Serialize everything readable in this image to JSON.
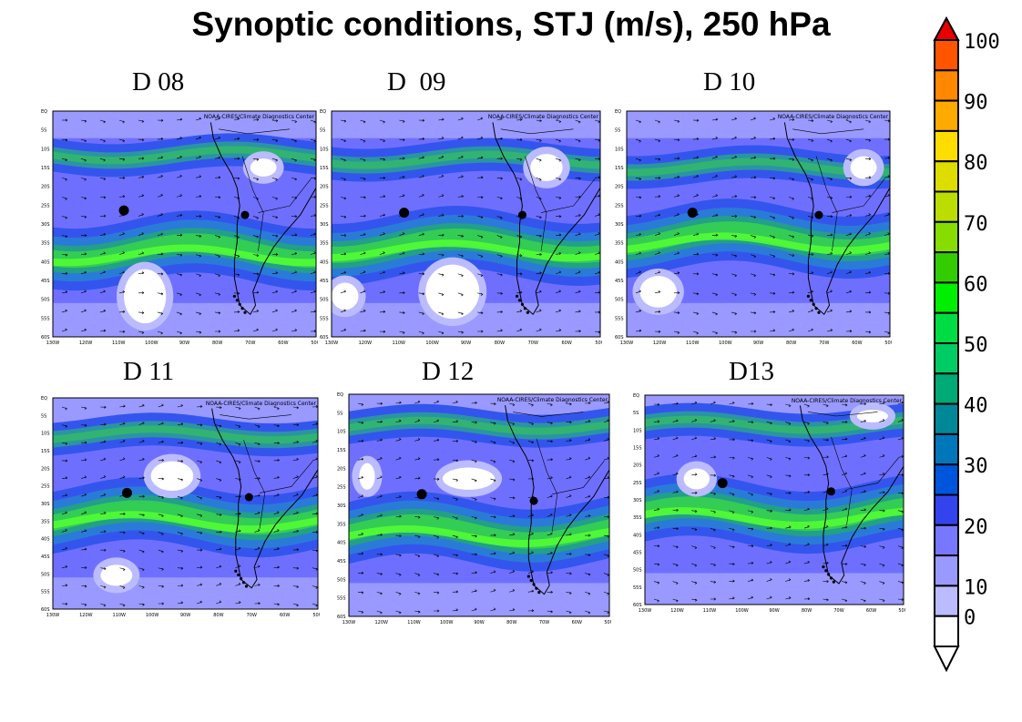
{
  "title": "Synoptic conditions, STJ (m/s), 250 hPa",
  "colors": {
    "background": "#6f6fff",
    "jet_mid": "#2a7bd8",
    "jet_core": "#33cc55",
    "jet_max": "#55ff33",
    "calm": "#ffffff",
    "coast": "#000000",
    "marker": "#000000"
  },
  "map_common": {
    "credit": "NOAA-CIRES/Climate Diagnostics Center",
    "lat_ticks": [
      "EQ",
      "5S",
      "10S",
      "15S",
      "20S",
      "25S",
      "30S",
      "35S",
      "40S",
      "45S",
      "50S",
      "55S",
      "60S"
    ],
    "lon_ticks": [
      "130W",
      "120W",
      "110W",
      "100W",
      "90W",
      "80W",
      "70W",
      "60W",
      "50W"
    ]
  },
  "panels": [
    {
      "label": "D 08"
    },
    {
      "label": "D  09"
    },
    {
      "label": "D 10"
    },
    {
      "label": "D 11"
    },
    {
      "label": "D 12"
    },
    {
      "label": "D13"
    }
  ],
  "colorbar": {
    "labels": [
      "100",
      "90",
      "80",
      "70",
      "60",
      "50",
      "40",
      "30",
      "20",
      "10",
      "0"
    ],
    "colors": [
      "#e60000",
      "#ff5500",
      "#ff8800",
      "#ffaa00",
      "#ffdd00",
      "#dddd00",
      "#bbdd00",
      "#88dd00",
      "#33cc00",
      "#00ee00",
      "#00dd44",
      "#00cc66",
      "#00aa77",
      "#008899",
      "#0077bb",
      "#0055dd",
      "#3344ee",
      "#7777ff",
      "#9999ff",
      "#bbbbff",
      "#ffffff"
    ]
  }
}
